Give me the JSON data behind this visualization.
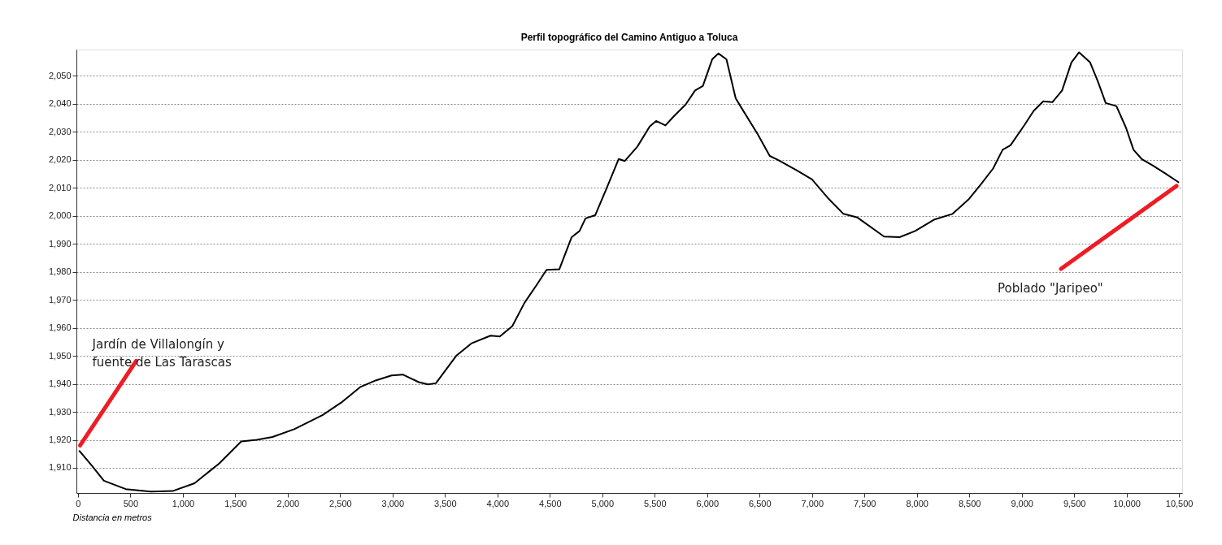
{
  "chart_data": {
    "type": "line",
    "title": "Perfil topográfico del Camino Antiguo a Toluca",
    "xlabel": "Distancia en metros",
    "x": [
      10,
      128,
      247,
      455,
      694,
      902,
      1111,
      1348,
      1557,
      1705,
      1855,
      2063,
      2331,
      2510,
      2690,
      2838,
      2990,
      3097,
      3249,
      3337,
      3413,
      3607,
      3755,
      3934,
      4023,
      4142,
      4259,
      4381,
      4468,
      4590,
      4708,
      4783,
      4840,
      4932,
      5033,
      5156,
      5215,
      5334,
      5452,
      5513,
      5602,
      5691,
      5796,
      5885,
      5959,
      6048,
      6108,
      6184,
      6272,
      6317,
      6481,
      6597,
      6675,
      6853,
      7000,
      7151,
      7300,
      7434,
      7687,
      7836,
      7984,
      8162,
      8340,
      8491,
      8611,
      8727,
      8818,
      8893,
      9027,
      9114,
      9205,
      9292,
      9385,
      9474,
      9547,
      9652,
      9725,
      9801,
      9903,
      9995,
      10066,
      10144,
      10248,
      10367,
      10500
    ],
    "series": [
      {
        "color": "#000000",
        "values": [
          1916.2,
          1911.0,
          1905.4,
          1902.4,
          1901.5,
          1901.7,
          1904.5,
          1911.6,
          1919.4,
          1920.0,
          1921.0,
          1923.8,
          1928.8,
          1933.3,
          1938.8,
          1941.2,
          1943.0,
          1943.3,
          1940.6,
          1939.8,
          1940.2,
          1950.0,
          1954.5,
          1957.2,
          1956.9,
          1960.6,
          1969.0,
          1975.7,
          1980.7,
          1980.9,
          1992.4,
          1994.6,
          1999.1,
          2000.2,
          2009.1,
          2020.3,
          2019.6,
          2024.7,
          2031.9,
          2033.9,
          2032.3,
          2035.9,
          2039.8,
          2044.8,
          2046.4,
          2055.9,
          2058.0,
          2055.9,
          2042.0,
          2039.2,
          2029.2,
          2021.4,
          2020.0,
          2016.3,
          2013.0,
          2006.4,
          2000.7,
          1999.4,
          1992.6,
          1992.4,
          1994.6,
          1998.6,
          2000.7,
          2005.8,
          2011.3,
          2016.9,
          2023.6,
          2025.2,
          2032.5,
          2037.5,
          2040.9,
          2040.6,
          2044.8,
          2054.8,
          2058.4,
          2054.8,
          2048.1,
          2040.3,
          2039.2,
          2031.4,
          2023.6,
          2020.3,
          2018.0,
          2015.2,
          2011.9
        ]
      }
    ],
    "xlim": [
      -15,
      10530
    ],
    "ylim": [
      1901,
      2059.4
    ],
    "xticks": [
      0,
      500,
      {
        "value": 1000,
        "label": "1,000"
      },
      {
        "value": 1500,
        "label": "1,500"
      },
      {
        "value": 2000,
        "label": "2,000"
      },
      {
        "value": 2500,
        "label": "2,500"
      },
      {
        "value": 3000,
        "label": "3,000"
      },
      {
        "value": 3500,
        "label": "3,500"
      },
      {
        "value": 4000,
        "label": "4,000"
      },
      {
        "value": 4500,
        "label": "4,500"
      },
      {
        "value": 5000,
        "label": "5,000"
      },
      {
        "value": 5500,
        "label": "5,500"
      },
      {
        "value": 6000,
        "label": "6,000"
      },
      {
        "value": 6500,
        "label": "6,500"
      },
      {
        "value": 7000,
        "label": "7,000"
      },
      {
        "value": 7500,
        "label": "7,500"
      },
      {
        "value": 8000,
        "label": "8,000"
      },
      {
        "value": 8500,
        "label": "8,500"
      },
      {
        "value": 9000,
        "label": "9,000"
      },
      {
        "value": 9500,
        "label": "9,500"
      },
      {
        "value": 10000,
        "label": "10,000"
      },
      {
        "value": 10500,
        "label": "10,500"
      }
    ],
    "yticks": [
      {
        "value": 1910,
        "label": "1,910"
      },
      {
        "value": 1920,
        "label": "1,920"
      },
      {
        "value": 1930,
        "label": "1,930"
      },
      {
        "value": 1940,
        "label": "1,940"
      },
      {
        "value": 1950,
        "label": "1,950"
      },
      {
        "value": 1960,
        "label": "1,960"
      },
      {
        "value": 1970,
        "label": "1,970"
      },
      {
        "value": 1980,
        "label": "1,980"
      },
      {
        "value": 1990,
        "label": "1,990"
      },
      {
        "value": 2000,
        "label": "2,000"
      },
      {
        "value": 2010,
        "label": "2,010"
      },
      {
        "value": 2020,
        "label": "2,020"
      },
      {
        "value": 2030,
        "label": "2,030"
      },
      {
        "value": 2040,
        "label": "2,040"
      },
      {
        "value": 2050,
        "label": "2,050"
      }
    ],
    "grid": "y",
    "marker": "none",
    "line_style": "solid",
    "annotations": [
      {
        "text": "Jardín de Villalongín y fuente de Las Tarascas",
        "x": 20,
        "y": 1918
      },
      "Poblado \"Jaripeo\""
    ]
  }
}
